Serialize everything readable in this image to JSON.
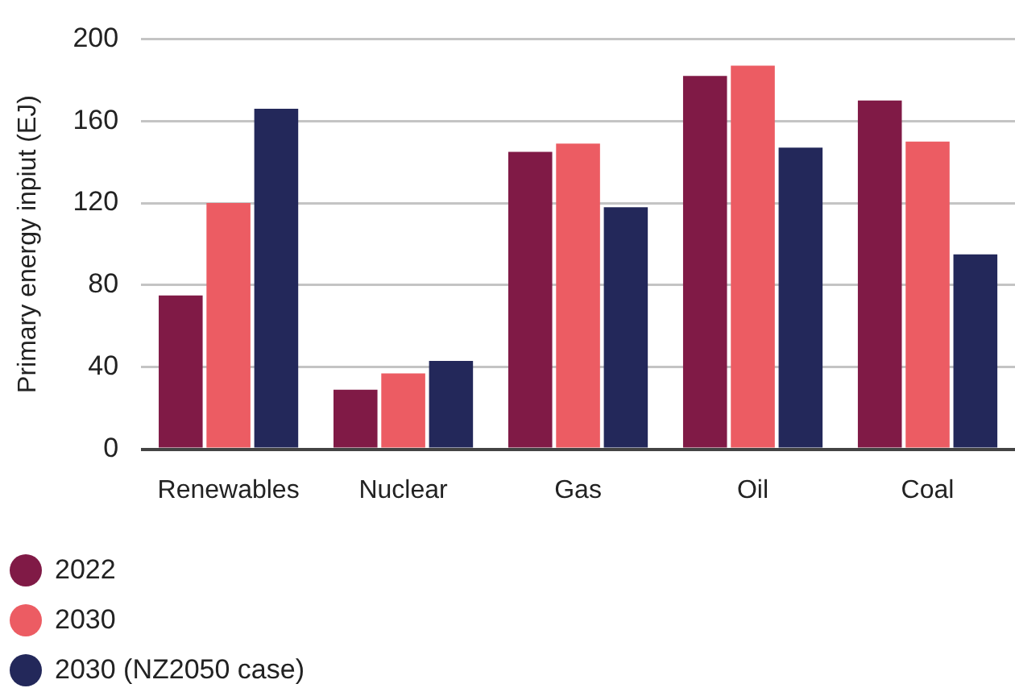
{
  "chart_data": {
    "type": "bar",
    "ylabel": "Primary energy inpiut (EJ)",
    "categories": [
      "Renewables",
      "Nuclear",
      "Gas",
      "Oil",
      "Coal"
    ],
    "series": [
      {
        "name": "2022",
        "color": "#801a46",
        "values": [
          75,
          29,
          145,
          182,
          170
        ]
      },
      {
        "name": "2030",
        "color": "#ec5c63",
        "values": [
          120,
          37,
          149,
          187,
          150
        ]
      },
      {
        "name": "2030 (NZ2050 case)",
        "color": "#23285a",
        "values": [
          166,
          43,
          118,
          147,
          95
        ]
      }
    ],
    "ylim": [
      0,
      200
    ],
    "yticks": [
      0,
      40,
      80,
      120,
      160,
      200
    ],
    "grid": "y",
    "legend": "bottom left"
  }
}
